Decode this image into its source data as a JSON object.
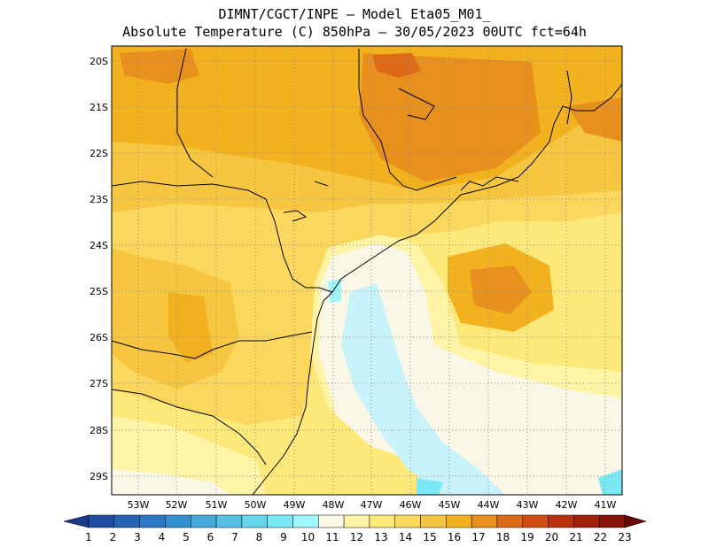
{
  "header": {
    "line1": "DIMNT/CGCT/INPE –  Model Eta05_M01_",
    "line2": "Absolute Temperature (C) 850hPa –  30/05/2023 00UTC fct=64h"
  },
  "map": {
    "lat_labels": [
      "20S",
      "21S",
      "22S",
      "23S",
      "24S",
      "25S",
      "26S",
      "27S",
      "28S",
      "29S"
    ],
    "lon_labels": [
      "53W",
      "52W",
      "51W",
      "50W",
      "49W",
      "48W",
      "47W",
      "46W",
      "45W",
      "44W",
      "43W",
      "42W",
      "41W"
    ],
    "grid": "dotted"
  },
  "colorbar": {
    "labels": [
      "1",
      "2",
      "3",
      "4",
      "5",
      "6",
      "7",
      "8",
      "9",
      "10",
      "11",
      "12",
      "13",
      "14",
      "15",
      "16",
      "17",
      "18",
      "19",
      "20",
      "21",
      "22",
      "23"
    ],
    "colors": [
      "#1a3a8a",
      "#1f4ea0",
      "#2563b4",
      "#2b78c4",
      "#3590d0",
      "#44a8dc",
      "#55c0e6",
      "#66d6ee",
      "#7ae9f5",
      "#9ff7fb",
      "#fbf7e6",
      "#fff3a6",
      "#fde87a",
      "#fbd75e",
      "#f7c640",
      "#f2b21f",
      "#e8901d",
      "#dd6a16",
      "#cf4c12",
      "#b8320e",
      "#a0220b",
      "#861408",
      "#6a0707"
    ]
  }
}
